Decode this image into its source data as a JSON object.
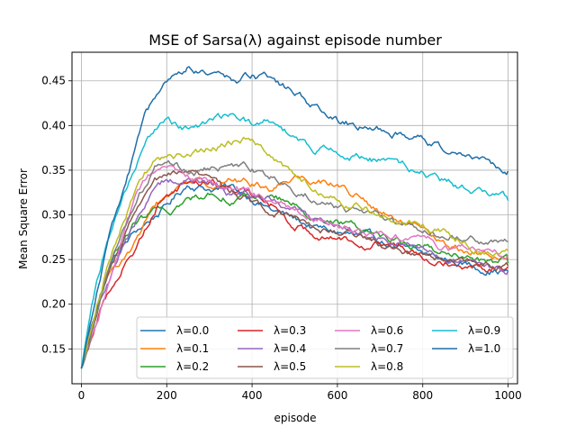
{
  "chart_data": {
    "type": "line",
    "title": "MSE of Sarsa(λ) against episode number",
    "xlabel": "episode",
    "ylabel": "Mean Square Error",
    "xlim": [
      -22,
      1022
    ],
    "ylim": [
      0.111,
      0.482
    ],
    "x_ticks": [
      0,
      200,
      400,
      600,
      800,
      1000
    ],
    "x_tick_labels": [
      "0",
      "200",
      "400",
      "600",
      "800",
      "1000"
    ],
    "y_ticks": [
      0.15,
      0.2,
      0.25,
      0.3,
      0.35,
      0.4,
      0.45
    ],
    "y_tick_labels": [
      "0.15",
      "0.20",
      "0.25",
      "0.30",
      "0.35",
      "0.40",
      "0.45"
    ],
    "grid": true,
    "legend": {
      "position": "lower-right",
      "columns": 4
    },
    "x": [
      0,
      25,
      50,
      75,
      100,
      125,
      150,
      175,
      200,
      250,
      300,
      350,
      400,
      450,
      500,
      550,
      600,
      650,
      700,
      750,
      800,
      850,
      900,
      950,
      1000
    ],
    "series": [
      {
        "name": "λ=0.0",
        "color": "#1f77b4",
        "values": [
          0.128,
          0.18,
          0.22,
          0.25,
          0.265,
          0.28,
          0.29,
          0.3,
          0.31,
          0.335,
          0.33,
          0.33,
          0.32,
          0.305,
          0.295,
          0.285,
          0.28,
          0.275,
          0.27,
          0.262,
          0.255,
          0.25,
          0.245,
          0.24,
          0.237
        ]
      },
      {
        "name": "λ=0.1",
        "color": "#ff7f0e",
        "values": [
          0.128,
          0.17,
          0.21,
          0.24,
          0.255,
          0.27,
          0.29,
          0.31,
          0.32,
          0.34,
          0.335,
          0.34,
          0.335,
          0.33,
          0.345,
          0.34,
          0.335,
          0.32,
          0.3,
          0.29,
          0.28,
          0.265,
          0.26,
          0.255,
          0.252
        ]
      },
      {
        "name": "λ=0.2",
        "color": "#2ca02c",
        "values": [
          0.128,
          0.175,
          0.215,
          0.25,
          0.27,
          0.29,
          0.298,
          0.305,
          0.3,
          0.315,
          0.325,
          0.32,
          0.32,
          0.32,
          0.31,
          0.3,
          0.29,
          0.285,
          0.278,
          0.27,
          0.265,
          0.258,
          0.252,
          0.248,
          0.246
        ]
      },
      {
        "name": "λ=0.3",
        "color": "#d62728",
        "values": [
          0.128,
          0.165,
          0.2,
          0.225,
          0.245,
          0.26,
          0.285,
          0.31,
          0.325,
          0.34,
          0.335,
          0.33,
          0.32,
          0.31,
          0.29,
          0.28,
          0.275,
          0.272,
          0.268,
          0.265,
          0.258,
          0.252,
          0.246,
          0.243,
          0.242
        ]
      },
      {
        "name": "λ=0.4",
        "color": "#9467bd",
        "values": [
          0.128,
          0.17,
          0.21,
          0.24,
          0.27,
          0.29,
          0.31,
          0.33,
          0.34,
          0.34,
          0.335,
          0.325,
          0.32,
          0.315,
          0.305,
          0.295,
          0.29,
          0.282,
          0.276,
          0.268,
          0.26,
          0.252,
          0.245,
          0.24,
          0.237
        ]
      },
      {
        "name": "λ=0.5",
        "color": "#8c564b",
        "values": [
          0.128,
          0.172,
          0.212,
          0.245,
          0.275,
          0.3,
          0.32,
          0.335,
          0.34,
          0.345,
          0.338,
          0.33,
          0.315,
          0.305,
          0.3,
          0.29,
          0.282,
          0.275,
          0.268,
          0.262,
          0.258,
          0.252,
          0.248,
          0.245,
          0.243
        ]
      },
      {
        "name": "λ=0.6",
        "color": "#e377c2",
        "values": [
          0.128,
          0.168,
          0.205,
          0.24,
          0.275,
          0.31,
          0.335,
          0.348,
          0.35,
          0.345,
          0.338,
          0.33,
          0.32,
          0.312,
          0.305,
          0.3,
          0.292,
          0.285,
          0.28,
          0.276,
          0.272,
          0.265,
          0.26,
          0.257,
          0.255
        ]
      },
      {
        "name": "λ=0.7",
        "color": "#7f7f7f",
        "values": [
          0.128,
          0.175,
          0.22,
          0.255,
          0.285,
          0.315,
          0.335,
          0.355,
          0.36,
          0.35,
          0.35,
          0.355,
          0.35,
          0.342,
          0.33,
          0.32,
          0.31,
          0.302,
          0.295,
          0.288,
          0.282,
          0.278,
          0.274,
          0.271,
          0.27
        ]
      },
      {
        "name": "λ=0.8",
        "color": "#bcbd22",
        "values": [
          0.128,
          0.178,
          0.225,
          0.265,
          0.3,
          0.325,
          0.345,
          0.36,
          0.365,
          0.365,
          0.375,
          0.38,
          0.385,
          0.37,
          0.34,
          0.33,
          0.32,
          0.31,
          0.3,
          0.295,
          0.288,
          0.28,
          0.27,
          0.262,
          0.26
        ]
      },
      {
        "name": "λ=0.9",
        "color": "#17becf",
        "values": [
          0.128,
          0.2,
          0.25,
          0.29,
          0.32,
          0.35,
          0.38,
          0.395,
          0.41,
          0.395,
          0.4,
          0.41,
          0.4,
          0.405,
          0.385,
          0.375,
          0.37,
          0.365,
          0.36,
          0.355,
          0.345,
          0.335,
          0.33,
          0.322,
          0.316
        ]
      },
      {
        "name": "λ=1.0",
        "color": "#1f6fa8",
        "values": [
          0.128,
          0.19,
          0.245,
          0.29,
          0.33,
          0.37,
          0.41,
          0.43,
          0.445,
          0.465,
          0.455,
          0.45,
          0.455,
          0.45,
          0.435,
          0.42,
          0.405,
          0.4,
          0.395,
          0.39,
          0.385,
          0.375,
          0.37,
          0.36,
          0.349
        ]
      }
    ]
  }
}
